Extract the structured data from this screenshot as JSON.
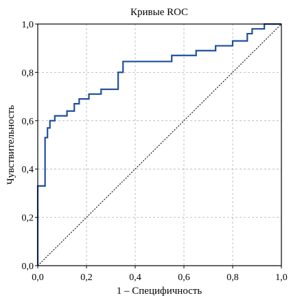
{
  "chart_data": {
    "type": "line",
    "title": "Кривые ROC",
    "xlabel": "1 – Специфичность",
    "ylabel": "Чувствительность",
    "xlim": [
      0,
      1
    ],
    "ylim": [
      0,
      1
    ],
    "x_ticks": [
      0,
      0.2,
      0.4,
      0.6,
      0.8,
      1.0
    ],
    "y_ticks": [
      0,
      0.2,
      0.4,
      0.6,
      0.8,
      1.0
    ],
    "x_tick_labels": [
      "0,0",
      "0,2",
      "0,4",
      "0,6",
      "0,8",
      "1,0"
    ],
    "y_tick_labels": [
      "0,0",
      "0,2",
      "0,4",
      "0,6",
      "0,8",
      "1,0"
    ],
    "grid": true,
    "legend": "none",
    "colors": {
      "roc": "#1f4e9c",
      "reference": "#000000",
      "grid": "#b0b0b0"
    },
    "series": [
      {
        "style": "solid",
        "x": [
          0.0,
          0.0,
          0.03,
          0.03,
          0.04,
          0.04,
          0.05,
          0.05,
          0.07,
          0.07,
          0.12,
          0.12,
          0.15,
          0.15,
          0.17,
          0.17,
          0.21,
          0.21,
          0.26,
          0.26,
          0.33,
          0.33,
          0.35,
          0.35,
          0.55,
          0.55,
          0.65,
          0.65,
          0.73,
          0.73,
          0.8,
          0.8,
          0.86,
          0.86,
          0.88,
          0.88,
          0.93,
          0.93,
          1.0
        ],
        "y": [
          0.0,
          0.33,
          0.33,
          0.53,
          0.53,
          0.57,
          0.57,
          0.6,
          0.6,
          0.62,
          0.62,
          0.64,
          0.64,
          0.67,
          0.67,
          0.69,
          0.69,
          0.71,
          0.71,
          0.73,
          0.73,
          0.8,
          0.8,
          0.845,
          0.845,
          0.87,
          0.87,
          0.89,
          0.89,
          0.91,
          0.91,
          0.93,
          0.93,
          0.96,
          0.96,
          0.98,
          0.98,
          1.0,
          1.0
        ]
      },
      {
        "style": "dotted",
        "x": [
          0,
          1
        ],
        "y": [
          0,
          1
        ]
      }
    ]
  }
}
